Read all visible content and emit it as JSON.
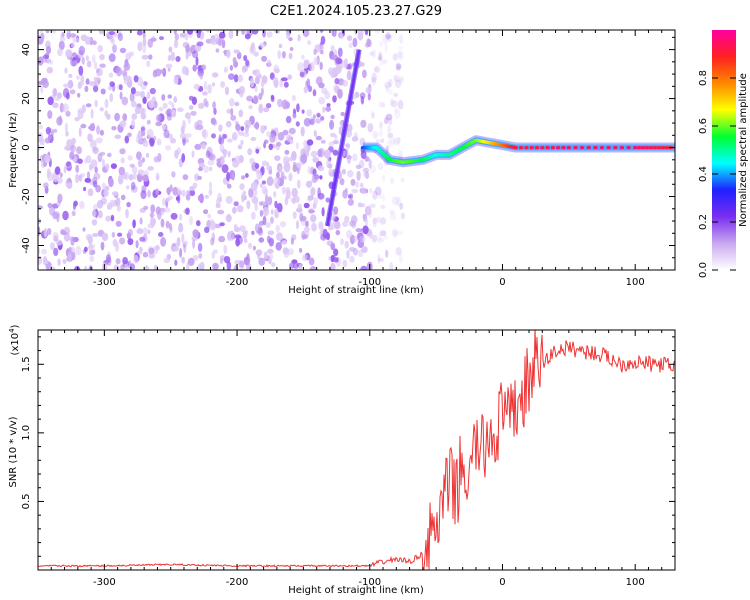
{
  "title": "C2E1.2024.105.23.27.G29",
  "chart_data": [
    {
      "type": "heatmap",
      "xlabel": "Height of straight line (km)",
      "ylabel": "Frequency (Hz)",
      "xlim": [
        -350,
        130
      ],
      "ylim": [
        -50,
        48
      ],
      "xticks": [
        -300,
        -200,
        -100,
        0,
        100
      ],
      "yticks": [
        -40,
        -20,
        0,
        20,
        40
      ],
      "colorbar": {
        "label": "Normalized spectral amplitude",
        "range": [
          0.0,
          1.0
        ],
        "ticks": [
          "0.0",
          "0.2",
          "0.4",
          "0.6",
          "0.8"
        ],
        "colormap": [
          "#ffffff",
          "#c9a8f0",
          "#7a2ef0",
          "#2020ff",
          "#00ffff",
          "#00ff30",
          "#ffff00",
          "#ff8800",
          "#ff2020",
          "#ff00a0"
        ]
      },
      "features": [
        {
          "name": "noise",
          "x_range": [
            -350,
            -75
          ],
          "y_range": [
            -50,
            48
          ],
          "amplitude": 0.1
        },
        {
          "name": "sweep",
          "x": [
            -132,
            -108
          ],
          "y": [
            -32,
            40
          ],
          "amplitude": 0.22
        },
        {
          "name": "signal",
          "x": [
            -105,
            -95,
            -85,
            -75,
            -60,
            -50,
            -40,
            -30,
            -20,
            -10,
            0,
            10,
            50,
            100,
            130
          ],
          "y": [
            0,
            0,
            -5,
            -6,
            -5,
            -3,
            -3,
            0,
            3,
            2,
            1,
            0,
            0,
            0,
            0
          ],
          "amplitude": [
            0.35,
            0.45,
            0.55,
            0.6,
            0.55,
            0.45,
            0.5,
            0.55,
            0.6,
            0.7,
            0.8,
            0.92,
            0.95,
            0.95,
            0.9
          ]
        }
      ]
    },
    {
      "type": "line",
      "xlabel": "Height of straight line (km)",
      "ylabel": "SNR (10 * v/v)",
      "y_multiplier": "(x10",
      "y_multiplier_exp": "4",
      "xlim": [
        -350,
        130
      ],
      "ylim": [
        0,
        1.75
      ],
      "xticks": [
        -300,
        -200,
        -100,
        0,
        100
      ],
      "yticks": [
        "0.5",
        "1.0",
        "1.5"
      ],
      "color": "#ee3333",
      "x": [
        -350,
        -300,
        -250,
        -200,
        -150,
        -110,
        -100,
        -90,
        -80,
        -70,
        -60,
        -50,
        -45,
        -40,
        -35,
        -30,
        -25,
        -20,
        -15,
        -10,
        -5,
        0,
        5,
        10,
        15,
        20,
        25,
        30,
        35,
        40,
        50,
        60,
        70,
        80,
        90,
        100,
        110,
        120,
        130
      ],
      "y": [
        0.03,
        0.03,
        0.04,
        0.03,
        0.03,
        0.03,
        0.03,
        0.06,
        0.08,
        0.06,
        0.12,
        0.3,
        0.45,
        0.65,
        0.55,
        0.8,
        0.6,
        0.95,
        0.85,
        1.0,
        1.0,
        1.15,
        1.05,
        1.2,
        1.25,
        1.4,
        1.5,
        1.5,
        1.55,
        1.6,
        1.62,
        1.6,
        1.58,
        1.55,
        1.5,
        1.52,
        1.5,
        1.5,
        1.48
      ]
    }
  ]
}
